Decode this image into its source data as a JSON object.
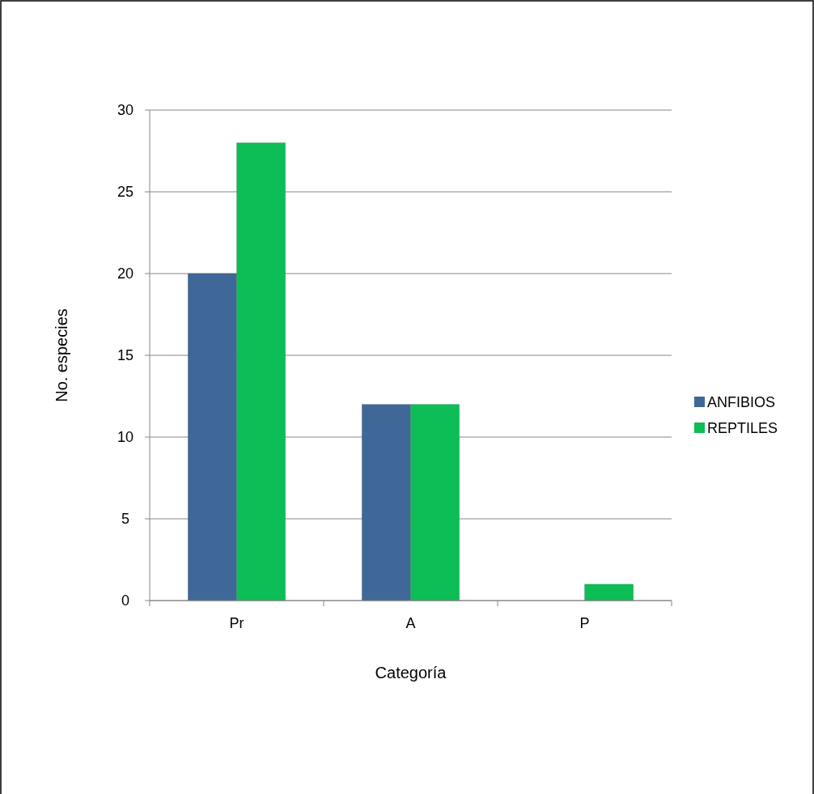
{
  "chart_data": {
    "type": "bar",
    "xlabel": "Categoría",
    "ylabel": "No. especies",
    "categories": [
      "Pr",
      "A",
      "P"
    ],
    "series": [
      {
        "name": "ANFIBIOS",
        "color": "#3f6899",
        "values": [
          20,
          12,
          0
        ]
      },
      {
        "name": "REPTILES",
        "color": "#0dbd55",
        "values": [
          28,
          12,
          1
        ]
      }
    ],
    "ylim": [
      0,
      30
    ],
    "yticks": [
      0,
      5,
      10,
      15,
      20,
      25,
      30
    ],
    "grid": "y",
    "legend": "right"
  }
}
